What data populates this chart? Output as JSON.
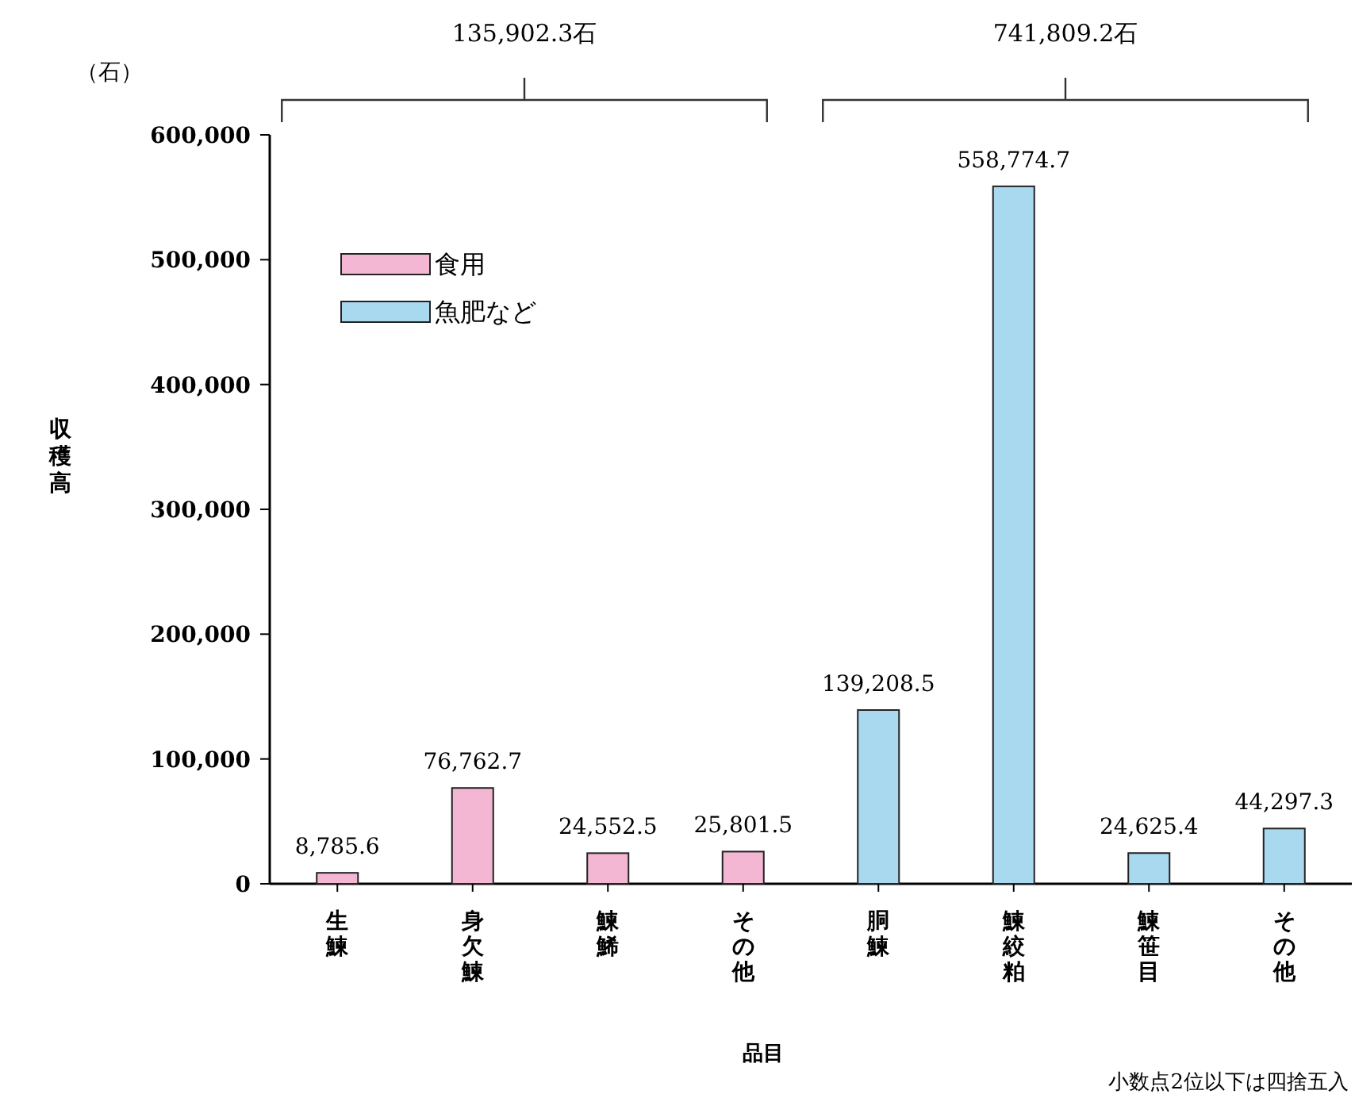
{
  "chart_data": {
    "type": "bar",
    "categories": [
      "生鰊",
      "身欠鰊",
      "鰊鯑",
      "その他",
      "胴鰊",
      "鰊絞粕",
      "鰊笹目",
      "その他"
    ],
    "series": [
      {
        "name": "食用",
        "color": "#f3b7d3",
        "values": [
          8785.6,
          76762.7,
          24552.5,
          25801.5,
          null,
          null,
          null,
          null
        ],
        "value_labels": [
          "8,785.6",
          "76,762.7",
          "24,552.5",
          "25,801.5",
          null,
          null,
          null,
          null
        ]
      },
      {
        "name": "魚肥など",
        "color": "#a9d9ef",
        "values": [
          null,
          null,
          null,
          null,
          139208.5,
          558774.7,
          24625.4,
          44297.3
        ],
        "value_labels": [
          null,
          null,
          null,
          null,
          "139,208.5",
          "558,774.7",
          "24,625.4",
          "44,297.3"
        ]
      }
    ],
    "xlabel": "品目",
    "ylabel": "収穫高",
    "ylim": [
      0,
      600000
    ],
    "yticks": [
      0,
      {
        "value": 100000,
        "label": "100,000"
      },
      {
        "value": 200000,
        "label": "200,000"
      },
      {
        "value": 300000,
        "label": "300,000"
      },
      {
        "value": 400000,
        "label": "400,000"
      },
      {
        "value": 500000,
        "label": "500,000"
      },
      {
        "value": 600000,
        "label": "600,000"
      }
    ],
    "annotations": [
      "（石）",
      "135,902.3石",
      "741,809.2石",
      "小数点2位以下は四捨五入"
    ],
    "legend": "top left",
    "grid": false
  }
}
